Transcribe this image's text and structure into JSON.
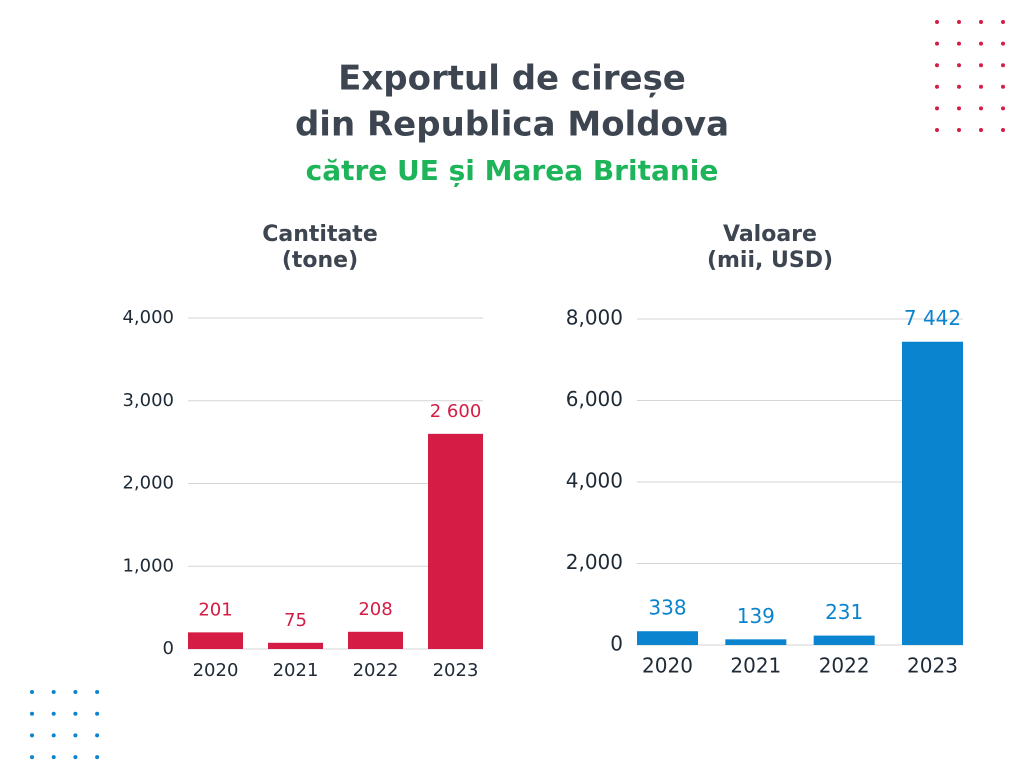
{
  "title": [
    "Exportul de cireșe",
    "din Republica Moldova"
  ],
  "subtitle": "către UE și Marea Britanie",
  "chart_data": [
    {
      "type": "bar",
      "title": "Cantitate",
      "subtitle": "(tone)",
      "categories": [
        "2020",
        "2021",
        "2022",
        "2023"
      ],
      "values": [
        201,
        75,
        208,
        2600
      ],
      "value_labels": [
        "201",
        "75",
        "208",
        "2 600"
      ],
      "color": "#d51c45",
      "ylim": [
        0,
        4000
      ],
      "yticks": [
        0,
        {
          "value": 1000,
          "label": "1,000"
        },
        {
          "value": 2000,
          "label": "2,000"
        },
        {
          "value": 3000,
          "label": "3,000"
        },
        {
          "value": 4000,
          "label": "4,000"
        }
      ],
      "grid": true
    },
    {
      "type": "bar",
      "title": "Valoare",
      "subtitle": "(mii, USD)",
      "categories": [
        "2020",
        "2021",
        "2022",
        "2023"
      ],
      "values": [
        338,
        139,
        231,
        7442
      ],
      "value_labels": [
        "338",
        "139",
        "231",
        "7 442"
      ],
      "color": "#0a84cf",
      "ylim": [
        0,
        8000
      ],
      "yticks": [
        0,
        {
          "value": 2000,
          "label": "2,000"
        },
        {
          "value": 4000,
          "label": "4,000"
        },
        {
          "value": 6000,
          "label": "6,000"
        },
        {
          "value": 8000,
          "label": "8,000"
        }
      ],
      "grid": true
    }
  ]
}
